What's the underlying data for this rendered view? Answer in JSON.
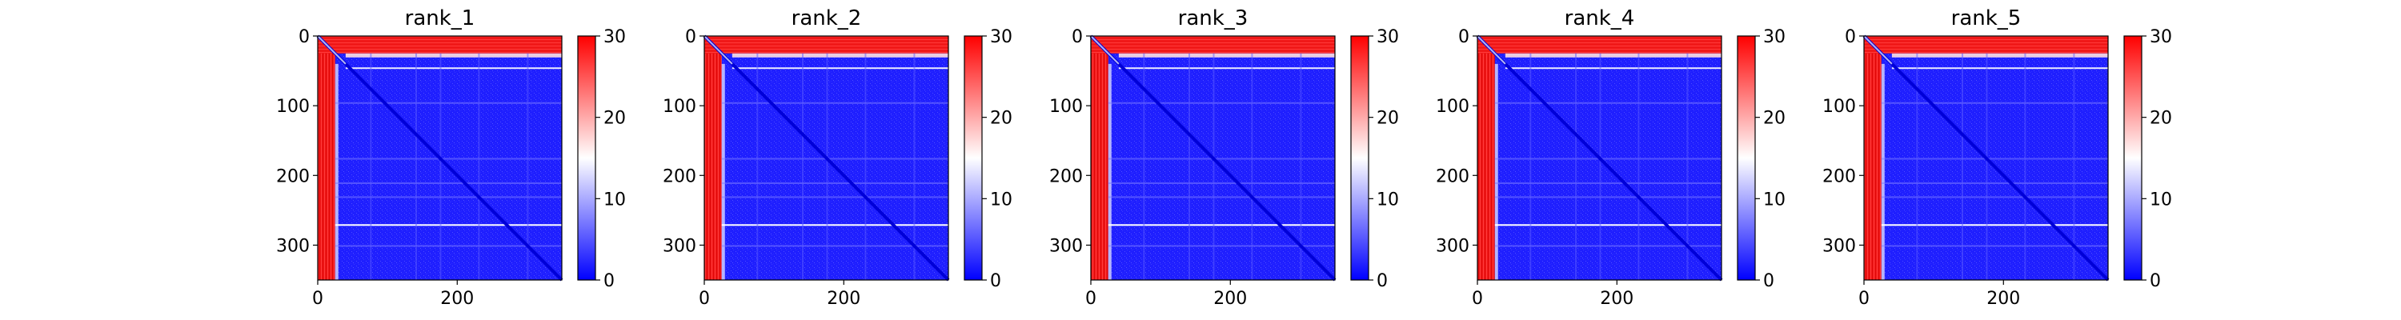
{
  "chart_data": [
    {
      "type": "heatmap",
      "title": "rank_1",
      "xlim": [
        0,
        350
      ],
      "ylim": [
        350,
        0
      ],
      "x_ticks": [
        "0",
        "200"
      ],
      "y_ticks": [
        "0",
        "100",
        "200",
        "300"
      ],
      "colorbar": {
        "min": 0,
        "max": 30,
        "ticks": [
          "0",
          "10",
          "20",
          "30"
        ],
        "colors": [
          "#0000ff",
          "#ffffff",
          "#ff0000"
        ]
      }
    },
    {
      "type": "heatmap",
      "title": "rank_2",
      "xlim": [
        0,
        350
      ],
      "ylim": [
        350,
        0
      ],
      "x_ticks": [
        "0",
        "200"
      ],
      "y_ticks": [
        "0",
        "100",
        "200",
        "300"
      ],
      "colorbar": {
        "min": 0,
        "max": 30,
        "ticks": [
          "0",
          "10",
          "20",
          "30"
        ],
        "colors": [
          "#0000ff",
          "#ffffff",
          "#ff0000"
        ]
      }
    },
    {
      "type": "heatmap",
      "title": "rank_3",
      "xlim": [
        0,
        350
      ],
      "ylim": [
        350,
        0
      ],
      "x_ticks": [
        "0",
        "200"
      ],
      "y_ticks": [
        "0",
        "100",
        "200",
        "300"
      ],
      "colorbar": {
        "min": 0,
        "max": 30,
        "ticks": [
          "0",
          "10",
          "20",
          "30"
        ],
        "colors": [
          "#0000ff",
          "#ffffff",
          "#ff0000"
        ]
      }
    },
    {
      "type": "heatmap",
      "title": "rank_4",
      "xlim": [
        0,
        350
      ],
      "ylim": [
        350,
        0
      ],
      "x_ticks": [
        "0",
        "200"
      ],
      "y_ticks": [
        "0",
        "100",
        "200",
        "300"
      ],
      "colorbar": {
        "min": 0,
        "max": 30,
        "ticks": [
          "0",
          "10",
          "20",
          "30"
        ],
        "colors": [
          "#0000ff",
          "#ffffff",
          "#ff0000"
        ]
      }
    },
    {
      "type": "heatmap",
      "title": "rank_5",
      "xlim": [
        0,
        350
      ],
      "ylim": [
        350,
        0
      ],
      "x_ticks": [
        "0",
        "200"
      ],
      "y_ticks": [
        "0",
        "100",
        "200",
        "300"
      ],
      "colorbar": {
        "min": 0,
        "max": 30,
        "ticks": [
          "0",
          "10",
          "20",
          "30"
        ],
        "colors": [
          "#0000ff",
          "#ffffff",
          "#ff0000"
        ]
      }
    }
  ]
}
